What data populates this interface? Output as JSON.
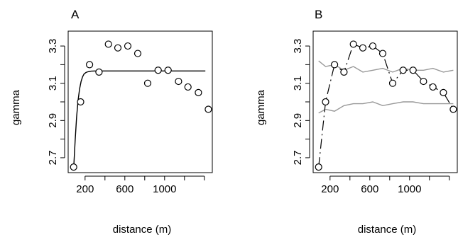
{
  "chart_data": [
    {
      "type": "scatter",
      "panel_label": "A",
      "xlabel": "distance (m)",
      "ylabel": "gamma",
      "xlim": [
        30,
        1480
      ],
      "ylim": [
        2.62,
        3.38
      ],
      "x_ticks": [
        200,
        600,
        1000
      ],
      "y_ticks": [
        2.7,
        2.9,
        3.1,
        3.3
      ],
      "points": {
        "x": [
          85,
          155,
          245,
          340,
          435,
          530,
          630,
          730,
          830,
          935,
          1035,
          1140,
          1235,
          1340,
          1440
        ],
        "y": [
          2.65,
          3.0,
          3.2,
          3.16,
          3.31,
          3.29,
          3.3,
          3.26,
          3.1,
          3.17,
          3.17,
          3.11,
          3.08,
          3.05,
          2.96
        ]
      },
      "fitted_model": {
        "x": [
          85,
          100,
          115,
          130,
          145,
          160,
          175,
          190,
          210,
          230,
          260,
          300,
          1410
        ],
        "y": [
          2.64,
          2.79,
          2.92,
          3.01,
          3.07,
          3.11,
          3.135,
          3.15,
          3.158,
          3.162,
          3.165,
          3.166,
          3.166
        ]
      }
    },
    {
      "type": "scatter",
      "panel_label": "B",
      "xlabel": "distance (m)",
      "ylabel": "gamma",
      "xlim": [
        30,
        1480
      ],
      "ylim": [
        2.62,
        3.38
      ],
      "x_ticks": [
        200,
        600,
        1000
      ],
      "y_ticks": [
        2.7,
        2.9,
        3.1,
        3.3
      ],
      "points": {
        "x": [
          85,
          155,
          245,
          340,
          435,
          530,
          630,
          730,
          830,
          935,
          1035,
          1140,
          1235,
          1340,
          1440
        ],
        "y": [
          2.65,
          3.0,
          3.2,
          3.16,
          3.31,
          3.29,
          3.3,
          3.26,
          3.1,
          3.17,
          3.17,
          3.11,
          3.08,
          3.05,
          2.96
        ]
      },
      "envelope_upper": {
        "x": [
          85,
          155,
          245,
          340,
          435,
          530,
          630,
          730,
          830,
          935,
          1035,
          1140,
          1235,
          1340,
          1440
        ],
        "y": [
          3.22,
          3.19,
          3.2,
          3.17,
          3.19,
          3.16,
          3.17,
          3.18,
          3.16,
          3.18,
          3.17,
          3.17,
          3.18,
          3.16,
          3.17
        ]
      },
      "envelope_lower": {
        "x": [
          85,
          155,
          245,
          340,
          435,
          530,
          630,
          730,
          830,
          935,
          1035,
          1140,
          1235,
          1340,
          1440
        ],
        "y": [
          2.94,
          2.96,
          2.95,
          2.98,
          2.99,
          2.99,
          3.0,
          2.98,
          2.99,
          3.0,
          3.0,
          2.99,
          2.99,
          2.99,
          2.99
        ]
      },
      "dash_line": {
        "x": [
          85,
          155,
          245,
          340,
          435,
          530,
          630,
          730,
          830,
          935,
          1035,
          1140,
          1235,
          1340,
          1440
        ],
        "y": [
          2.65,
          3.0,
          3.2,
          3.16,
          3.31,
          3.29,
          3.3,
          3.26,
          3.1,
          3.17,
          3.17,
          3.11,
          3.08,
          3.05,
          2.96
        ]
      }
    }
  ]
}
